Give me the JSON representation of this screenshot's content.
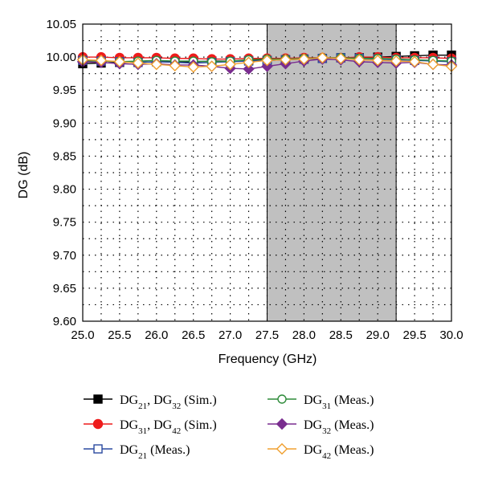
{
  "chart_data": {
    "type": "line",
    "title": "",
    "xlabel": "Frequency (GHz)",
    "ylabel": "DG (dB)",
    "xlim": [
      25.0,
      30.0
    ],
    "ylim": [
      9.6,
      10.05
    ],
    "x_ticks": [
      "25.0",
      "25.5",
      "26.0",
      "26.5",
      "27.0",
      "27.5",
      "28.0",
      "28.5",
      "29.0",
      "29.5",
      "30.0"
    ],
    "y_ticks": [
      "9.60",
      "9.65",
      "9.70",
      "9.75",
      "9.80",
      "9.85",
      "9.90",
      "9.95",
      "10.00",
      "10.05"
    ],
    "grid": true,
    "shaded_band": {
      "x_start": 27.5,
      "x_end": 29.25,
      "color": "#c0c0c0"
    },
    "legend_position": "bottom",
    "x": [
      25.0,
      25.25,
      25.5,
      25.75,
      26.0,
      26.25,
      26.5,
      26.75,
      27.0,
      27.25,
      27.5,
      27.75,
      28.0,
      28.25,
      28.5,
      28.75,
      29.0,
      29.25,
      29.5,
      29.75,
      30.0
    ],
    "series": [
      {
        "legend_main": "DG",
        "legend_sub1": "21",
        "legend_mid": ", DG",
        "legend_sub2": "32",
        "legend_tail": " (Sim.)",
        "color": "#000000",
        "marker": "square-filled",
        "values": [
          9.99,
          9.991,
          9.992,
          9.992,
          9.993,
          9.993,
          9.993,
          9.994,
          9.994,
          9.995,
          9.995,
          9.996,
          9.997,
          9.998,
          9.999,
          9.999,
          10.0,
          10.001,
          10.002,
          10.003,
          10.003
        ]
      },
      {
        "legend_main": "DG",
        "legend_sub1": "31",
        "legend_mid": ", DG",
        "legend_sub2": "42",
        "legend_tail": " (Sim.)",
        "color": "#ee1c1c",
        "marker": "circle-filled",
        "values": [
          10.0,
          10.0,
          9.999,
          9.999,
          9.999,
          9.998,
          9.998,
          9.997,
          9.997,
          9.998,
          9.998,
          9.998,
          9.999,
          9.999,
          9.999,
          10.0,
          10.0,
          9.999,
          9.999,
          9.999,
          9.998
        ]
      },
      {
        "legend_main": "DG",
        "legend_sub1": "21",
        "legend_mid": "",
        "legend_sub2": "",
        "legend_tail": " (Meas.)",
        "color": "#2a4aa0",
        "marker": "square-open",
        "values": [
          9.995,
          9.994,
          9.993,
          9.992,
          9.993,
          9.992,
          9.991,
          9.992,
          9.993,
          9.994,
          9.995,
          9.996,
          9.997,
          9.998,
          9.999,
          9.998,
          9.997,
          9.996,
          9.995,
          9.994,
          9.993
        ]
      },
      {
        "legend_main": "DG",
        "legend_sub1": "31",
        "legend_mid": "",
        "legend_sub2": "",
        "legend_tail": " (Meas.)",
        "color": "#2e8b3a",
        "marker": "circle-open",
        "values": [
          9.994,
          9.994,
          9.993,
          9.994,
          9.995,
          9.994,
          9.994,
          9.993,
          9.994,
          9.996,
          9.997,
          9.997,
          9.998,
          9.999,
          9.999,
          9.998,
          9.998,
          9.997,
          9.996,
          9.995,
          9.994
        ]
      },
      {
        "legend_main": "DG",
        "legend_sub1": "32",
        "legend_mid": "",
        "legend_sub2": "",
        "legend_tail": " (Meas.)",
        "color": "#7a2d8f",
        "marker": "diamond-filled",
        "values": [
          9.993,
          9.992,
          9.99,
          9.989,
          9.99,
          9.988,
          9.988,
          9.986,
          9.983,
          9.982,
          9.986,
          9.99,
          9.994,
          9.997,
          9.996,
          9.993,
          9.992,
          9.991,
          9.992,
          9.989,
          9.988
        ]
      },
      {
        "legend_main": "DG",
        "legend_sub1": "42",
        "legend_mid": "",
        "legend_sub2": "",
        "legend_tail": " (Meas.)",
        "color": "#f0a030",
        "marker": "diamond-open",
        "values": [
          9.996,
          9.995,
          9.993,
          9.991,
          9.989,
          9.987,
          9.985,
          9.986,
          9.989,
          9.992,
          9.995,
          9.996,
          9.997,
          9.999,
          9.998,
          9.996,
          9.995,
          9.994,
          9.993,
          9.989,
          9.986
        ]
      }
    ]
  }
}
